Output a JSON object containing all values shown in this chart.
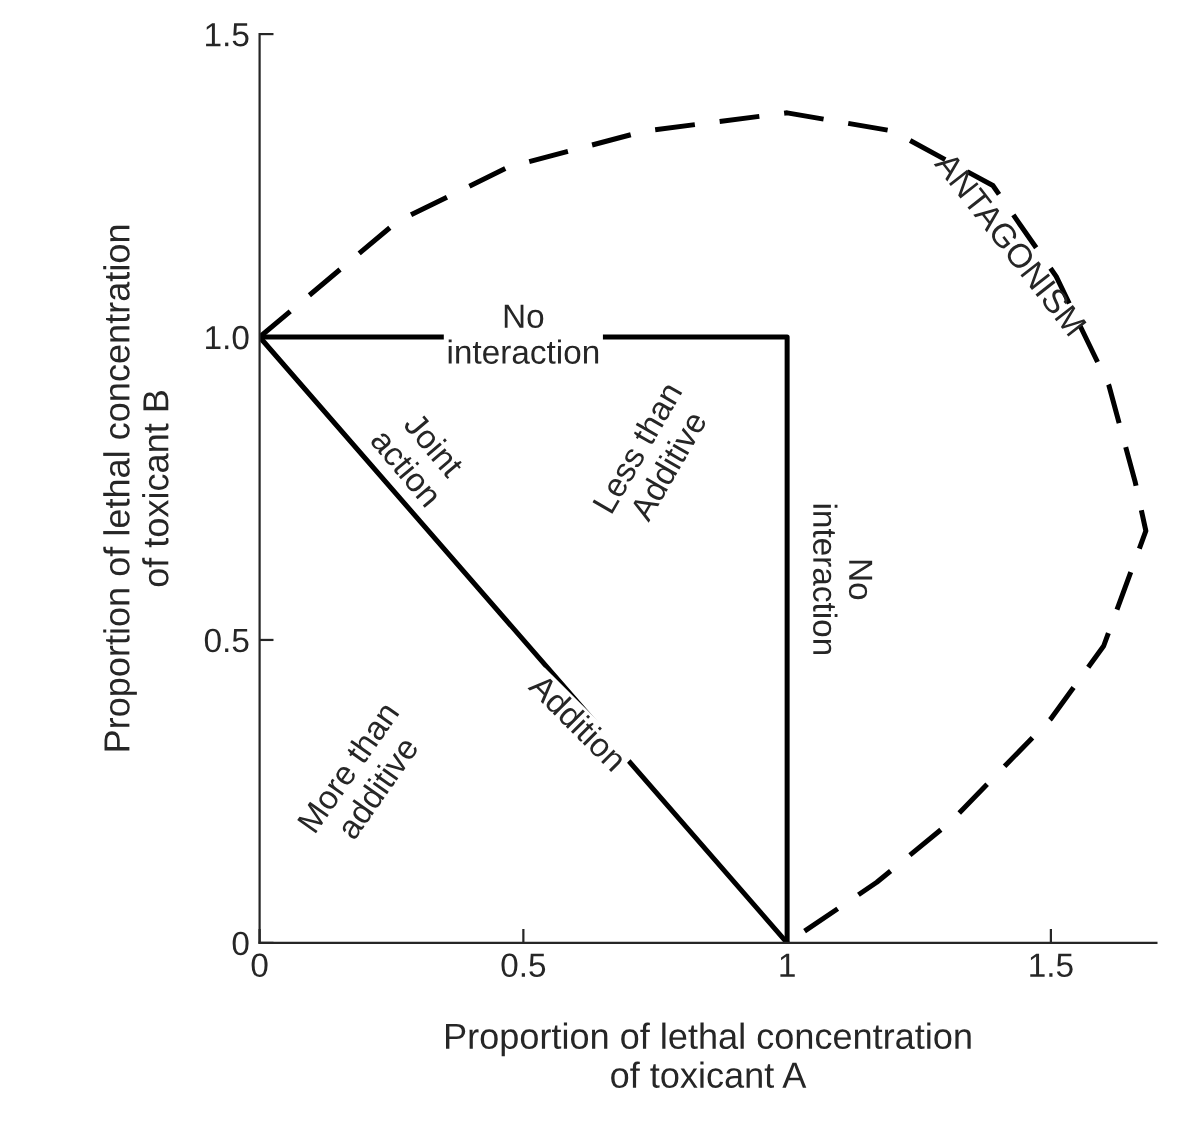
{
  "chart_data": {
    "type": "line",
    "xlabel": "Proportion of lethal concentration\nof toxicant A",
    "ylabel": "Proportion of lethal concentration\nof toxicant B",
    "xlim": [
      0,
      1.7
    ],
    "ylim": [
      0,
      1.5
    ],
    "xticks": [
      0,
      0.5,
      1,
      1.5
    ],
    "yticks": [
      0,
      0.5,
      {
        "value": 1,
        "label": "1.0"
      },
      1.5
    ],
    "grid": false,
    "legend": false,
    "marker": "none",
    "series": [
      {
        "color": "#000000",
        "line_style": "solid",
        "x": [
          0,
          1,
          1
        ],
        "values": [
          1,
          1,
          0
        ]
      },
      {
        "color": "#000000",
        "line_style": "solid",
        "x": [
          0,
          1
        ],
        "values": [
          1,
          0
        ]
      },
      {
        "color": "#000000",
        "line_style": "dashed",
        "x": [
          0,
          0.26,
          0.47,
          0.73,
          1.0,
          1.2,
          1.39,
          1.51,
          1.61,
          1.66,
          1.68,
          1.6,
          1.5,
          1.31,
          1.17,
          1.0
        ],
        "values": [
          1,
          1.19,
          1.28,
          1.34,
          1.37,
          1.34,
          1.25,
          1.1,
          0.92,
          0.76,
          0.68,
          0.49,
          0.37,
          0.2,
          0.1,
          0
        ]
      }
    ],
    "annotations": [
      "No\ninteraction",
      "Joint\naction",
      "Addition",
      "Less than\nAdditive",
      "No\ninteraction",
      "ANTAGONISM",
      "More than\nadditive"
    ]
  }
}
